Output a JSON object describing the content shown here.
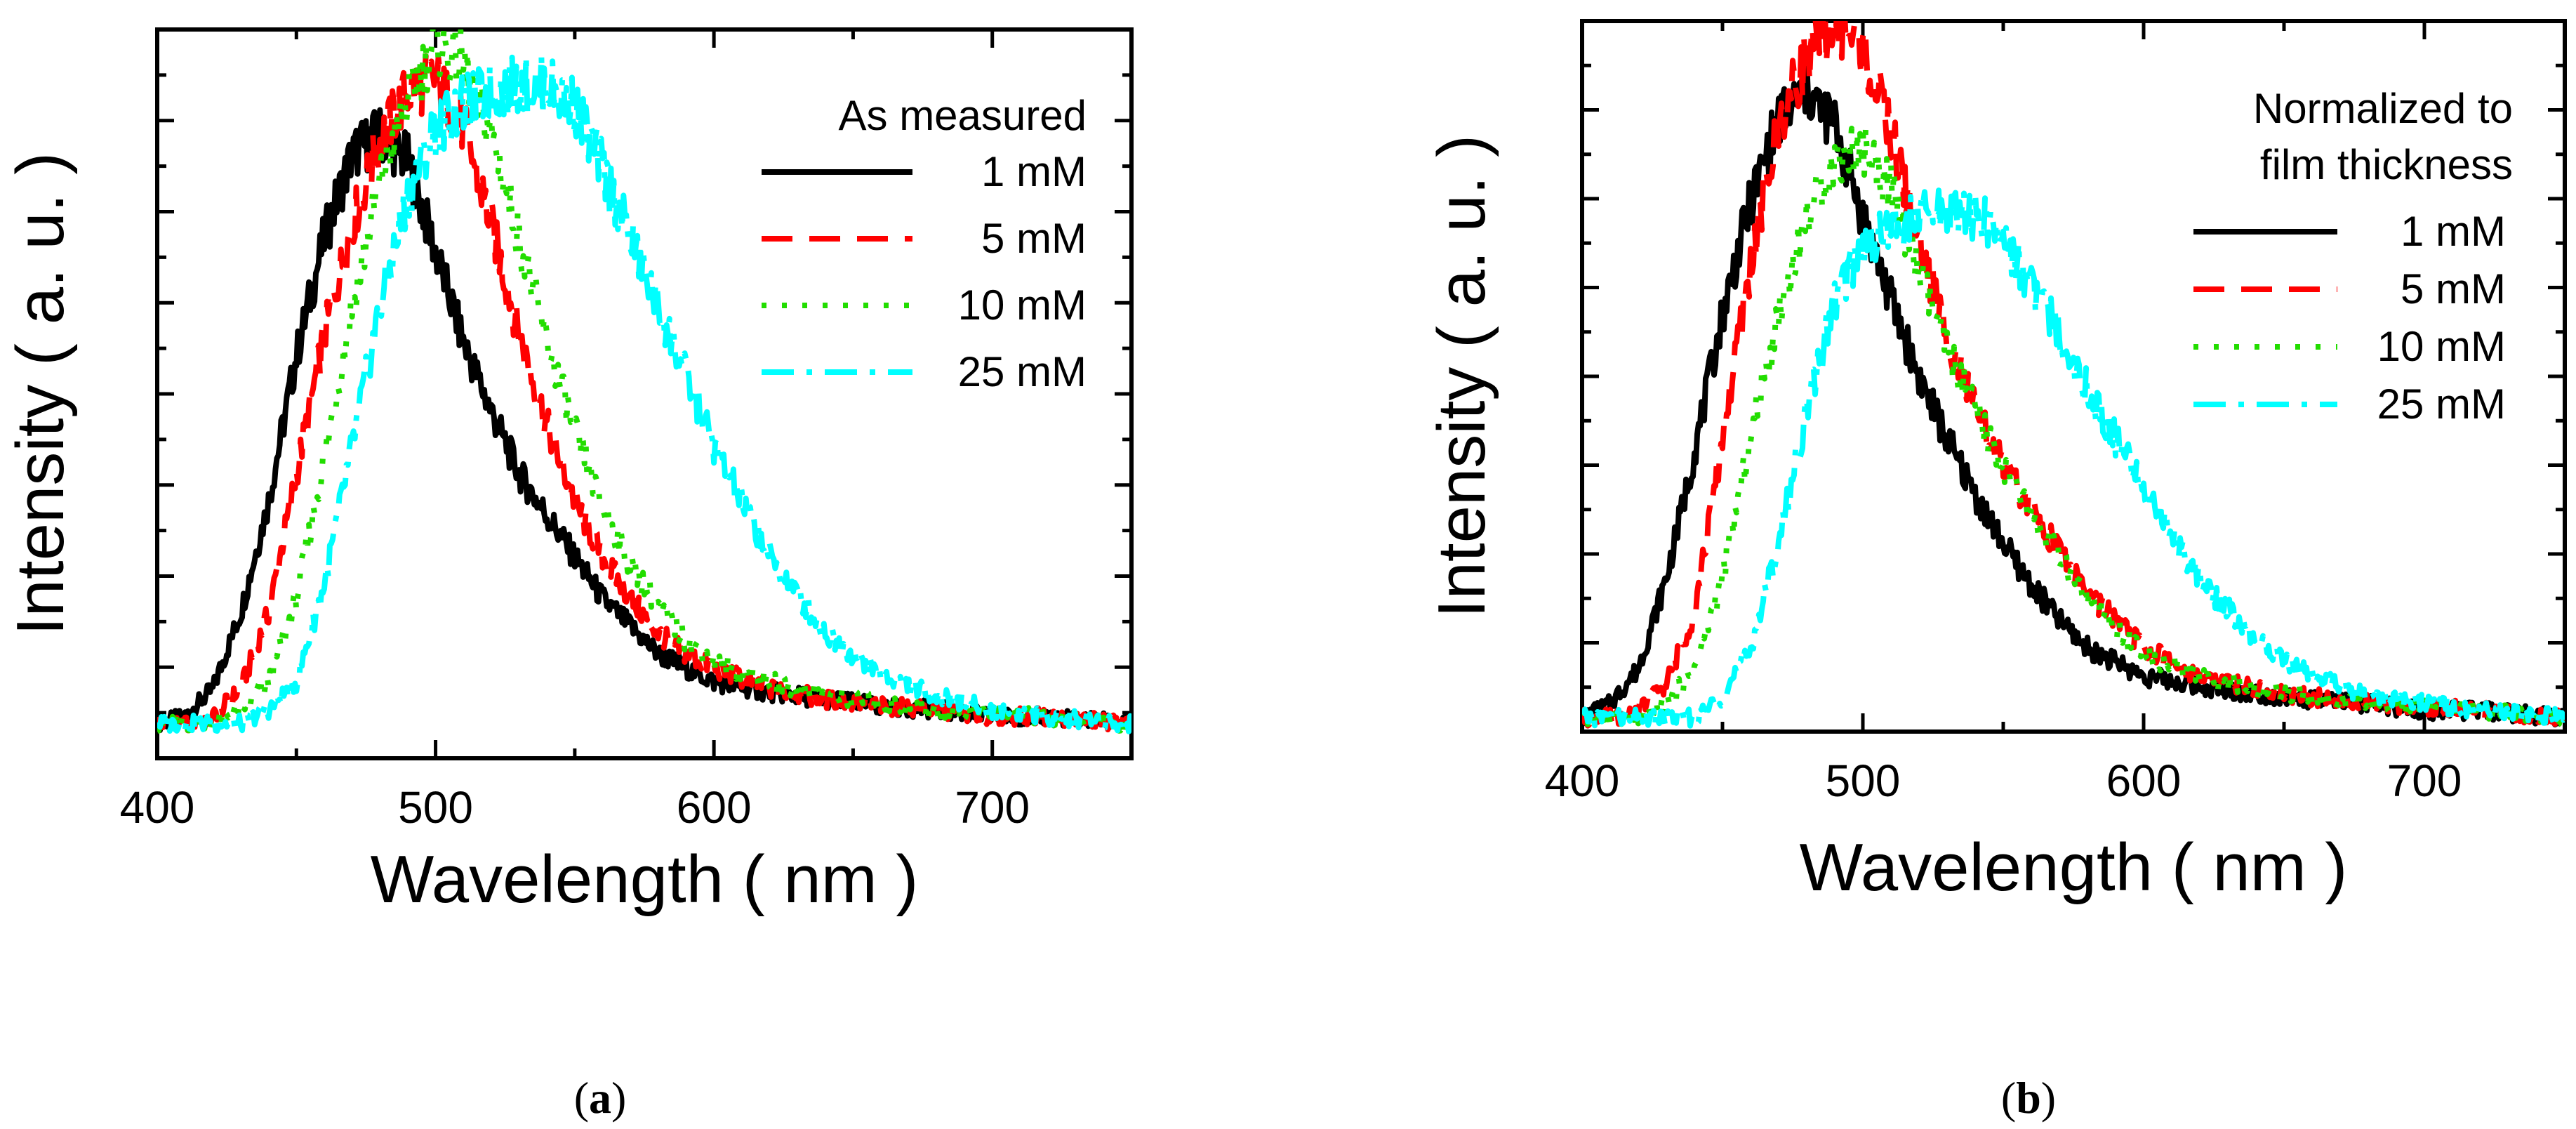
{
  "chart_data": [
    {
      "type": "line",
      "panel_label": "a",
      "title": "",
      "xlabel": "Wavelength ( nm )",
      "ylabel": "Intensity ( a. u. )",
      "xlim": [
        400,
        750
      ],
      "ylim": [
        -0.05,
        1.0
      ],
      "xticks": [
        400,
        500,
        600,
        700
      ],
      "y_tick_labels_shown": false,
      "grid": false,
      "legend": {
        "title": "As measured",
        "placement": "top-right"
      },
      "x": [
        400,
        410,
        420,
        430,
        440,
        450,
        460,
        470,
        480,
        490,
        500,
        510,
        520,
        530,
        540,
        550,
        560,
        570,
        580,
        590,
        600,
        620,
        640,
        660,
        680,
        700,
        720,
        750
      ],
      "series": [
        {
          "name": "1 mM",
          "color": "#000000",
          "dash": "solid",
          "values": [
            0.0,
            0.01,
            0.05,
            0.16,
            0.32,
            0.53,
            0.7,
            0.82,
            0.85,
            0.81,
            0.68,
            0.55,
            0.45,
            0.36,
            0.3,
            0.24,
            0.18,
            0.14,
            0.1,
            0.08,
            0.06,
            0.045,
            0.035,
            0.025,
            0.02,
            0.01,
            0.01,
            0.0
          ]
        },
        {
          "name": "5 mM",
          "color": "#ff0000",
          "dash": "dash",
          "values": [
            0.0,
            0.0,
            0.01,
            0.05,
            0.16,
            0.36,
            0.56,
            0.72,
            0.84,
            0.91,
            0.93,
            0.86,
            0.72,
            0.56,
            0.43,
            0.32,
            0.24,
            0.18,
            0.13,
            0.1,
            0.08,
            0.05,
            0.035,
            0.025,
            0.02,
            0.01,
            0.01,
            0.0
          ]
        },
        {
          "name": "10 mM",
          "color": "#22dd00",
          "dash": "dot",
          "values": [
            0.0,
            0.0,
            0.0,
            0.02,
            0.06,
            0.18,
            0.38,
            0.6,
            0.78,
            0.9,
            0.98,
            0.95,
            0.85,
            0.7,
            0.55,
            0.42,
            0.31,
            0.23,
            0.17,
            0.12,
            0.09,
            0.06,
            0.04,
            0.03,
            0.02,
            0.015,
            0.01,
            0.0
          ]
        },
        {
          "name": "25 mM",
          "color": "#00ffff",
          "dash": "dashdot",
          "values": [
            0.0,
            0.0,
            0.0,
            0.0,
            0.02,
            0.06,
            0.2,
            0.4,
            0.6,
            0.76,
            0.86,
            0.89,
            0.91,
            0.92,
            0.92,
            0.89,
            0.8,
            0.7,
            0.6,
            0.5,
            0.4,
            0.24,
            0.13,
            0.07,
            0.04,
            0.02,
            0.01,
            0.0
          ]
        }
      ]
    },
    {
      "type": "line",
      "panel_label": "b",
      "title": "",
      "xlabel": "Wavelength ( nm )",
      "ylabel": "Intensity ( a. u. )",
      "xlim": [
        400,
        750
      ],
      "ylim": [
        -0.02,
        1.0
      ],
      "xticks": [
        400,
        500,
        600,
        700
      ],
      "y_tick_labels_shown": false,
      "grid": false,
      "legend": {
        "title": "Normalized to film thickness",
        "placement": "top-right"
      },
      "x": [
        400,
        410,
        420,
        430,
        440,
        450,
        460,
        470,
        480,
        490,
        500,
        510,
        520,
        530,
        540,
        550,
        560,
        570,
        580,
        590,
        600,
        620,
        640,
        660,
        680,
        700,
        720,
        750
      ],
      "series": [
        {
          "name": "1 mM",
          "color": "#000000",
          "dash": "solid",
          "values": [
            0.0,
            0.02,
            0.07,
            0.2,
            0.38,
            0.58,
            0.74,
            0.86,
            0.9,
            0.85,
            0.72,
            0.6,
            0.49,
            0.4,
            0.32,
            0.25,
            0.19,
            0.14,
            0.1,
            0.08,
            0.06,
            0.045,
            0.035,
            0.025,
            0.02,
            0.01,
            0.01,
            0.0
          ]
        },
        {
          "name": "5 mM",
          "color": "#ff0000",
          "dash": "dash",
          "values": [
            0.0,
            0.0,
            0.01,
            0.05,
            0.15,
            0.4,
            0.65,
            0.85,
            0.95,
            1.0,
            0.96,
            0.84,
            0.68,
            0.55,
            0.44,
            0.36,
            0.3,
            0.24,
            0.18,
            0.14,
            0.1,
            0.06,
            0.04,
            0.03,
            0.02,
            0.015,
            0.01,
            0.0
          ]
        },
        {
          "name": "10 mM",
          "color": "#22dd00",
          "dash": "dot",
          "values": [
            0.0,
            0.0,
            0.0,
            0.02,
            0.07,
            0.2,
            0.4,
            0.58,
            0.72,
            0.8,
            0.82,
            0.76,
            0.64,
            0.53,
            0.44,
            0.36,
            0.29,
            0.23,
            0.17,
            0.13,
            0.09,
            0.06,
            0.04,
            0.03,
            0.02,
            0.015,
            0.01,
            0.0
          ]
        },
        {
          "name": "25 mM",
          "color": "#00ffff",
          "dash": "dashdot",
          "values": [
            0.0,
            0.0,
            0.0,
            0.0,
            0.0,
            0.03,
            0.1,
            0.25,
            0.44,
            0.6,
            0.68,
            0.7,
            0.72,
            0.73,
            0.72,
            0.69,
            0.62,
            0.55,
            0.47,
            0.4,
            0.33,
            0.2,
            0.11,
            0.06,
            0.03,
            0.02,
            0.01,
            0.0
          ]
        }
      ]
    }
  ]
}
